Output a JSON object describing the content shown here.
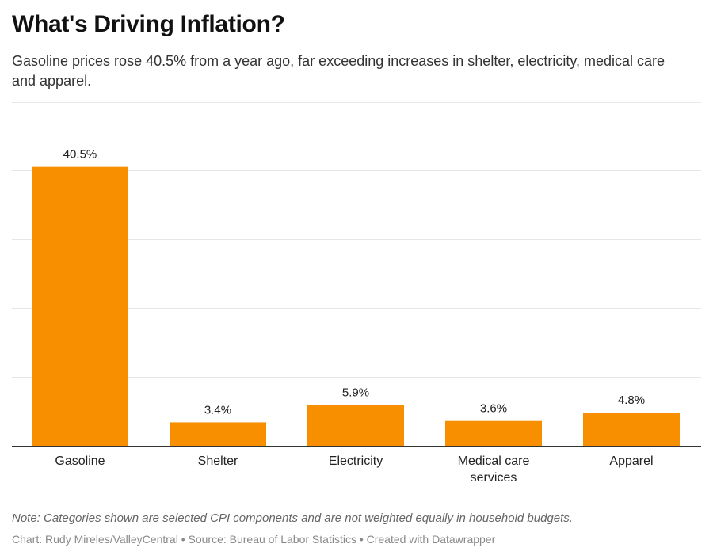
{
  "chart_data": {
    "type": "bar",
    "title": "What's Driving Inflation?",
    "subtitle": "Gasoline prices rose 40.5% from a year ago, far exceeding increases in shelter, electricity, medical care and apparel.",
    "categories": [
      {
        "lines": [
          "Gasoline"
        ]
      },
      {
        "lines": [
          "Shelter"
        ]
      },
      {
        "lines": [
          "Electricity"
        ]
      },
      {
        "lines": [
          "Medical care",
          "services"
        ]
      },
      {
        "lines": [
          "Apparel"
        ]
      }
    ],
    "values": [
      40.5,
      3.4,
      5.9,
      3.6,
      4.8
    ],
    "value_labels": [
      "40.5%",
      "3.4%",
      "5.9%",
      "3.6%",
      "4.8%"
    ],
    "ylim": [
      0,
      50
    ],
    "gridlines": [
      10,
      20,
      30,
      40,
      50
    ],
    "grid": true,
    "bar_color": "#f78f00",
    "note": "Note: Categories shown are selected CPI components and are not weighted equally in household budgets.",
    "credit": "Chart: Rudy Mireles/ValleyCentral • Source: Bureau of Labor Statistics • Created with Datawrapper"
  }
}
